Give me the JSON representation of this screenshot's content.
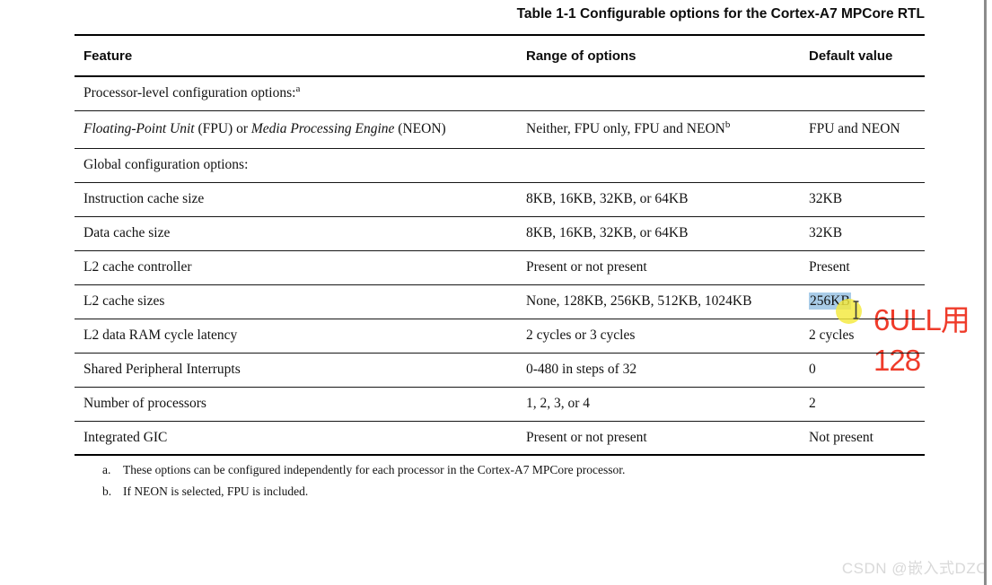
{
  "page": {
    "title": "Table 1-1 Configurable options for the Cortex-A7 MPCore RTL",
    "watermark": "CSDN @嵌入式DZC"
  },
  "table": {
    "headers": [
      {
        "label": "Feature"
      },
      {
        "label": "Range of options"
      },
      {
        "label": "Default value"
      }
    ],
    "rows": [
      {
        "kind": "section",
        "text": "Processor-level configuration options:",
        "sup": "a"
      },
      {
        "kind": "data",
        "row_class": "fpu-row",
        "feature": [
          {
            "t": "Floating-Point Unit",
            "i": true
          },
          {
            "t": " (FPU) or ",
            "i": false
          },
          {
            "t": "Media Processing Engine",
            "i": true
          },
          {
            "t": " (NEON)",
            "i": false
          }
        ],
        "range": "Neither, FPU only, FPU and NEON",
        "range_sup": "b",
        "default": "FPU and NEON"
      },
      {
        "kind": "section",
        "text": "Global configuration options:"
      },
      {
        "kind": "data",
        "feature": "Instruction cache size",
        "range": "8KB, 16KB, 32KB, or 64KB",
        "default": "32KB"
      },
      {
        "kind": "data",
        "feature": "Data cache size",
        "range": "8KB, 16KB, 32KB, or 64KB",
        "default": "32KB"
      },
      {
        "kind": "data",
        "feature": "L2 cache controller",
        "range": "Present or not present",
        "default": "Present"
      },
      {
        "kind": "data",
        "feature": "L2 cache sizes",
        "range": "None, 128KB, 256KB, 512KB, 1024KB",
        "default": "256KB",
        "default_selected": true
      },
      {
        "kind": "data",
        "feature": "L2 data RAM cycle latency",
        "range": "2 cycles or 3 cycles",
        "default": "2 cycles"
      },
      {
        "kind": "data",
        "feature": "Shared Peripheral Interrupts",
        "range": "0-480 in steps of 32",
        "default": "0"
      },
      {
        "kind": "data",
        "feature": "Number of processors",
        "range": "1, 2, 3, or 4",
        "default": "2"
      },
      {
        "kind": "data",
        "feature": "Integrated GIC",
        "range": "Present or not present",
        "default": "Not present"
      }
    ]
  },
  "footnotes": [
    {
      "marker": "a.",
      "text": "These options can be configured independently for each processor in the Cortex-A7 MPCore processor."
    },
    {
      "marker": "b.",
      "text": "If NEON is selected, FPU is included."
    }
  ],
  "annotation": {
    "line1": "6ULL用",
    "line2": "128",
    "color": "#ef3b2a"
  },
  "selection": {
    "selected_text": "256KB",
    "highlight_color": "#a9cce8",
    "cursor_circle_color": "#f4e93c",
    "cursor_icon": "text-ibeam"
  }
}
